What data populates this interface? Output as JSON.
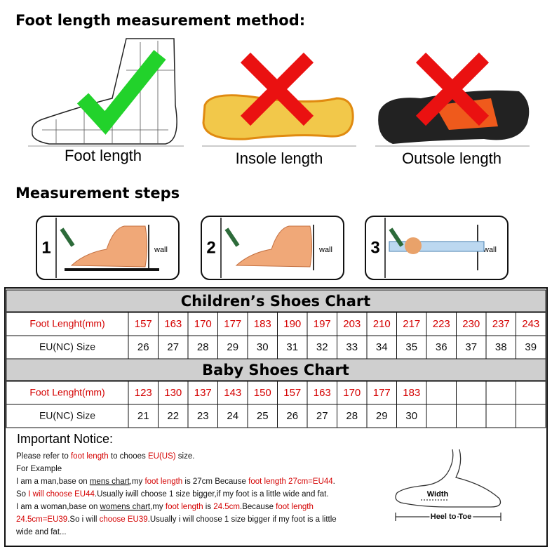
{
  "method": {
    "title": "Foot length measurement method:",
    "items": [
      "Foot length",
      "Insole length",
      "Outsole length"
    ]
  },
  "steps": {
    "title": "Measurement steps",
    "items": [
      {
        "number": "1",
        "label": "wall"
      },
      {
        "number": "2",
        "label": "wall"
      },
      {
        "number": "3",
        "label": "wall"
      }
    ]
  },
  "children_chart": {
    "title": "Children’s Shoes Chart",
    "rows": [
      {
        "label": "Foot Lenght(mm)",
        "color": "#d40000",
        "values": [
          157,
          163,
          170,
          177,
          183,
          190,
          197,
          203,
          210,
          217,
          223,
          230,
          237,
          243
        ]
      },
      {
        "label": "EU(NC) Size",
        "color": "#111111",
        "values": [
          26,
          27,
          28,
          29,
          30,
          31,
          32,
          33,
          34,
          35,
          36,
          37,
          38,
          39
        ]
      }
    ]
  },
  "baby_chart": {
    "title": "Baby Shoes Chart",
    "rows": [
      {
        "label": "Foot Lenght(mm)",
        "color": "#d40000",
        "values": [
          123,
          130,
          137,
          143,
          150,
          157,
          163,
          170,
          177,
          183
        ]
      },
      {
        "label": "EU(NC) Size",
        "color": "#111111",
        "values": [
          21,
          22,
          23,
          24,
          25,
          26,
          27,
          28,
          29,
          30
        ]
      }
    ]
  },
  "notice": {
    "title": "Important Notice:",
    "lines": [
      [
        {
          "text": "Please refer to "
        },
        {
          "text": "foot length",
          "color": "#d40000"
        },
        {
          "text": " to chooes "
        },
        {
          "text": "EU(US)",
          "color": "#d40000"
        },
        {
          "text": " size."
        }
      ],
      [
        {
          "text": "For Example"
        }
      ],
      [
        {
          "text": "I am a man,base on "
        },
        {
          "text": "mens chart",
          "underline": true
        },
        {
          "text": ",my "
        },
        {
          "text": "foot length",
          "color": "#d40000"
        },
        {
          "text": " is 27cm Because "
        },
        {
          "text": "foot length 27cm=EU44",
          "color": "#d40000"
        },
        {
          "text": "."
        }
      ],
      [
        {
          "text": "So "
        },
        {
          "text": "I will choose EU44",
          "color": "#d40000"
        },
        {
          "text": ".Usually iwill choose 1 size bigger,if my foot is a little wide and fat."
        }
      ],
      [
        {
          "text": "I am a woman,base on "
        },
        {
          "text": "womens chart",
          "underline": true
        },
        {
          "text": ",my "
        },
        {
          "text": "foot length",
          "color": "#d40000"
        },
        {
          "text": " is "
        },
        {
          "text": "24.5cm",
          "color": "#d40000"
        },
        {
          "text": ".Because "
        },
        {
          "text": "foot length",
          "color": "#d40000"
        }
      ],
      [
        {
          "text": "24.5cm=EU39",
          "color": "#d40000"
        },
        {
          "text": ".So i will "
        },
        {
          "text": "choose EU39",
          "color": "#d40000"
        },
        {
          "text": ".Usually i will choose 1 size bigger if my foot is a little"
        }
      ],
      [
        {
          "text": "wide and fat..."
        }
      ]
    ],
    "diagram": {
      "width_label": "Width",
      "length_label": "Heel to Toe"
    }
  }
}
